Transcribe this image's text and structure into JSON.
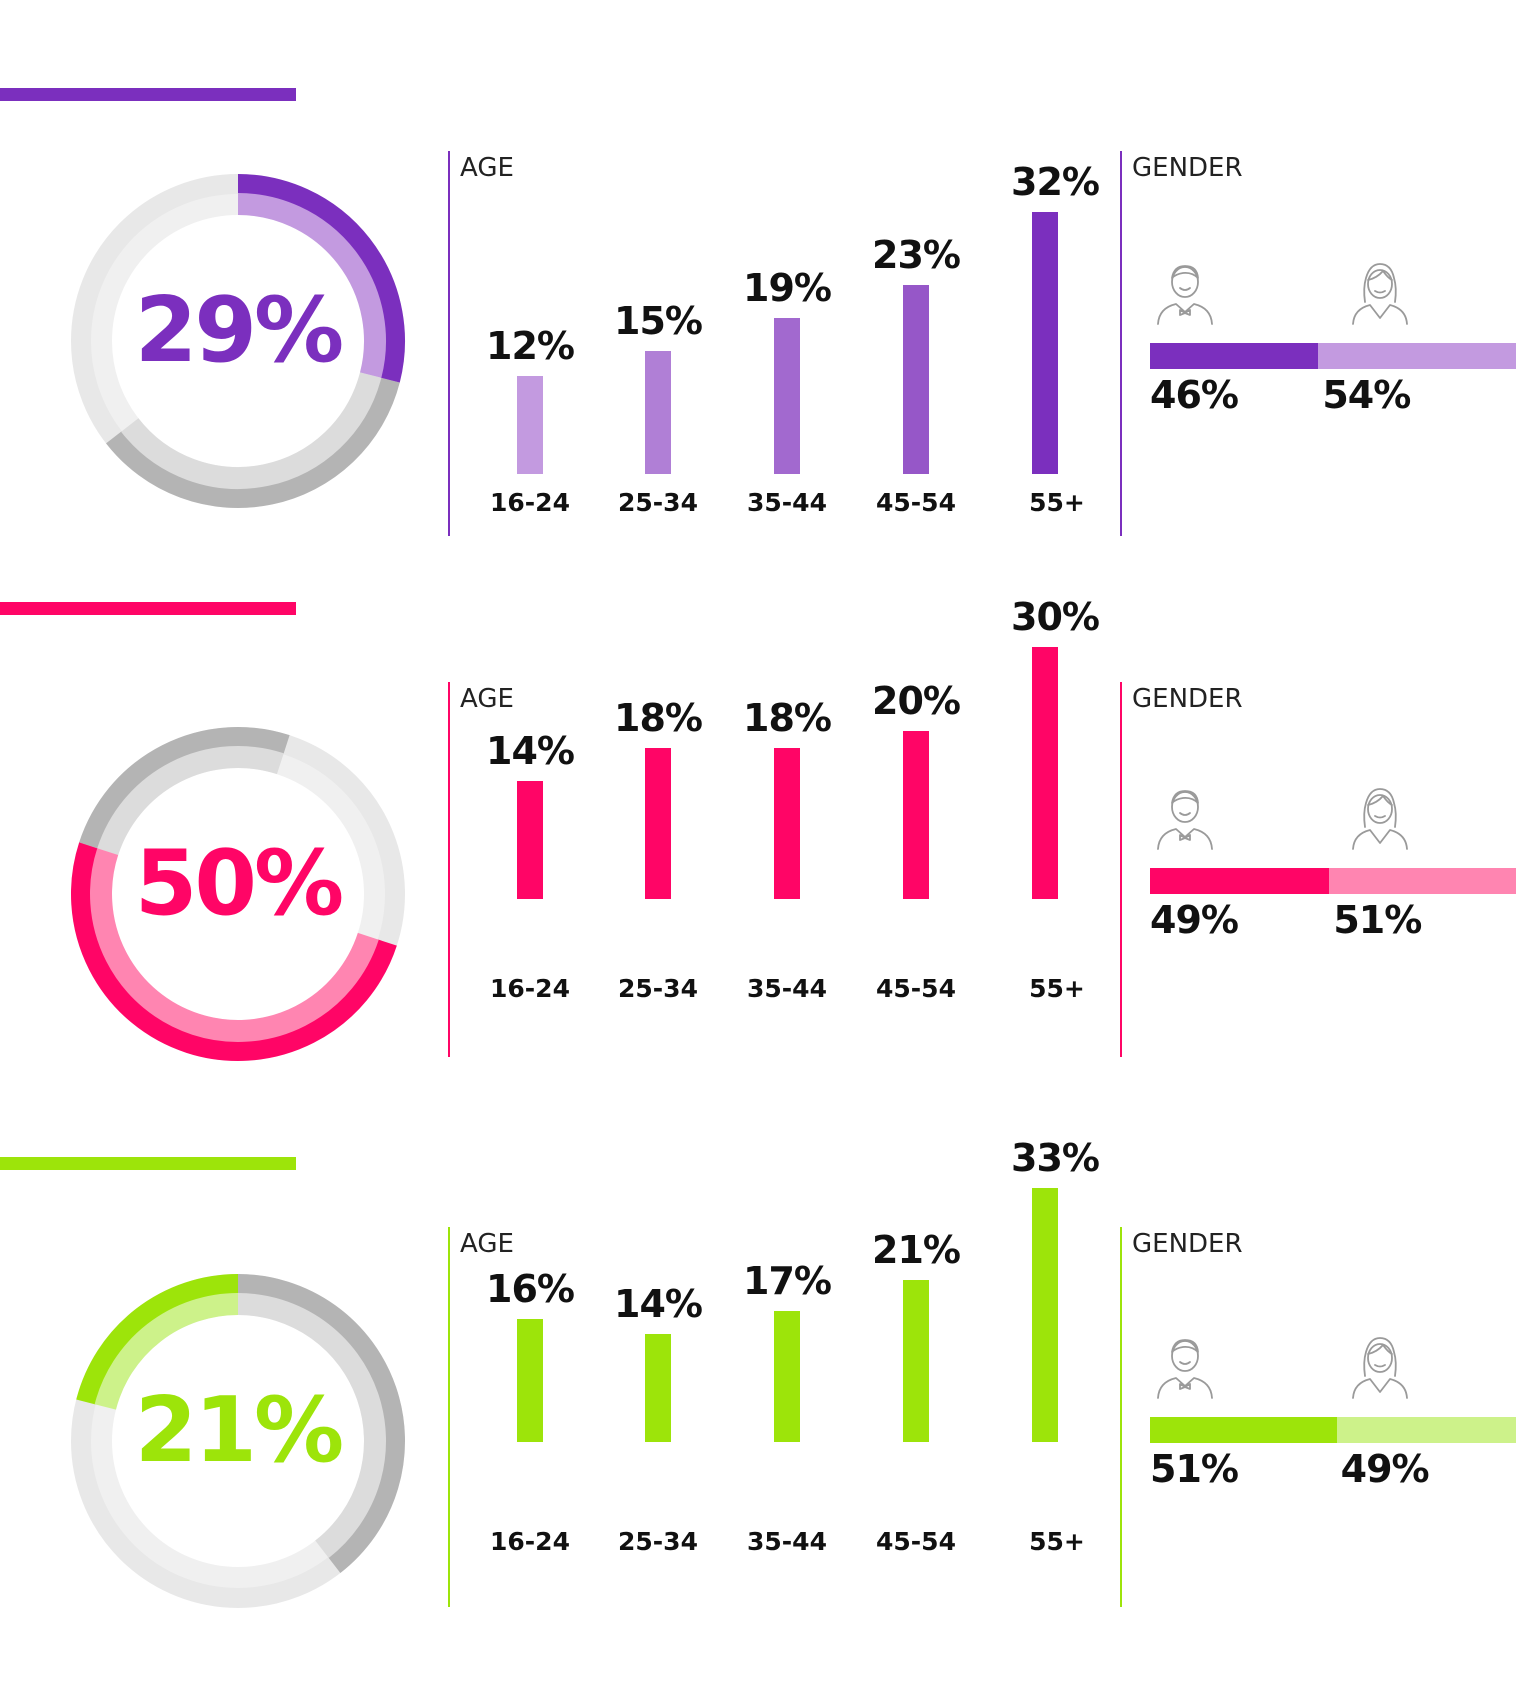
{
  "chart_data": [
    {
      "type": "bar",
      "donut": {
        "value": 29,
        "label": "29%",
        "color": "#7b2fbe",
        "light": "#c39ae0"
      },
      "age": {
        "heading": "AGE",
        "categories": [
          "16-24",
          "25-34",
          "35-44",
          "45-54",
          "55+"
        ],
        "values": [
          12,
          15,
          19,
          23,
          32
        ],
        "labels": [
          "12%",
          "15%",
          "19%",
          "23%",
          "32%"
        ],
        "colors": [
          "#c39ae0",
          "#b07fd6",
          "#a269cf",
          "#9657c8",
          "#7b2fbe"
        ]
      },
      "gender": {
        "heading": "GENDER",
        "male": 46,
        "female": 54,
        "male_label": "46%",
        "female_label": "54%",
        "male_color": "#7b2fbe",
        "female_color": "#c39ae0"
      }
    },
    {
      "type": "bar",
      "donut": {
        "value": 50,
        "label": "50%",
        "color": "#ff0566",
        "light": "#ff85b1"
      },
      "age": {
        "heading": "AGE",
        "categories": [
          "16-24",
          "25-34",
          "35-44",
          "45-54",
          "55+"
        ],
        "values": [
          14,
          18,
          18,
          20,
          30
        ],
        "labels": [
          "14%",
          "18%",
          "18%",
          "20%",
          "30%"
        ],
        "colors": [
          "#ff0566",
          "#ff0566",
          "#ff0566",
          "#ff0566",
          "#ff0566"
        ]
      },
      "gender": {
        "heading": "GENDER",
        "male": 49,
        "female": 51,
        "male_label": "49%",
        "female_label": "51%",
        "male_color": "#ff0566",
        "female_color": "#ff85b1"
      }
    },
    {
      "type": "bar",
      "donut": {
        "value": 21,
        "label": "21%",
        "color": "#9de40a",
        "light": "#cdf28a"
      },
      "age": {
        "heading": "AGE",
        "categories": [
          "16-24",
          "25-34",
          "35-44",
          "45-54",
          "55+"
        ],
        "values": [
          16,
          14,
          17,
          21,
          33
        ],
        "labels": [
          "16%",
          "14%",
          "17%",
          "21%",
          "33%"
        ],
        "colors": [
          "#9de40a",
          "#9de40a",
          "#9de40a",
          "#9de40a",
          "#9de40a"
        ]
      },
      "gender": {
        "heading": "GENDER",
        "male": 51,
        "female": 49,
        "male_label": "51%",
        "female_label": "49%",
        "male_color": "#9de40a",
        "female_color": "#cdf28a"
      }
    }
  ],
  "icons": {
    "male": "male-person-icon",
    "female": "female-person-icon"
  }
}
